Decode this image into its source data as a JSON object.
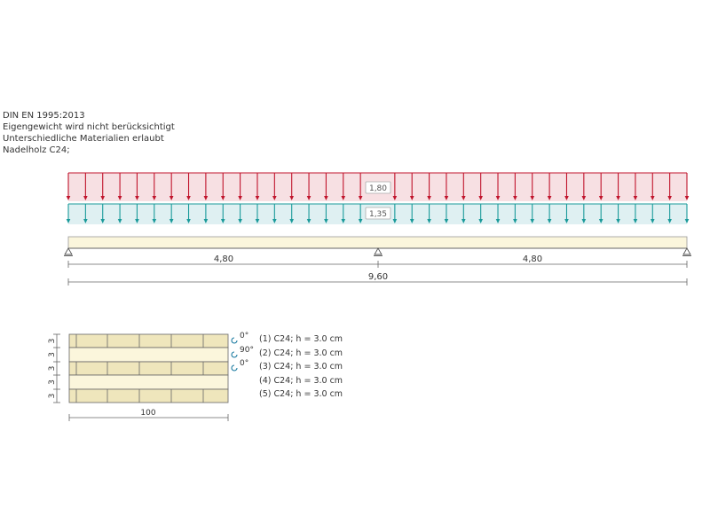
{
  "header": {
    "lines": [
      "DIN EN 1995:2013",
      "Eigengewicht wird nicht berücksichtigt",
      "Unterschiedliche Materialien erlaubt",
      "Nadelholz C24;"
    ]
  },
  "loads": {
    "permanent": {
      "value_label": "1,80",
      "color": "#c0142c",
      "fill": "#f7e0e3"
    },
    "variable": {
      "value_label": "1,35",
      "color": "#1a9a9a",
      "fill": "#dff0f2"
    },
    "arrow_count": 37
  },
  "beam": {
    "fill": "#fbf6dc",
    "spans": [
      "4,80",
      "4,80"
    ],
    "total": "9,60"
  },
  "cross_section": {
    "width_label": "100",
    "layer_heights": [
      "3",
      "3",
      "3",
      "3",
      "3"
    ],
    "orientations": [
      "0°",
      "90°",
      "0°"
    ],
    "layers": [
      "(1) C24; h = 3.0 cm",
      "(2) C24; h = 3.0 cm",
      "(3) C24; h = 3.0 cm",
      "(4) C24; h = 3.0 cm",
      "(5) C24; h = 3.0 cm"
    ],
    "wood_color": "#efe6bc",
    "cross_color": "#fbf6dc"
  }
}
